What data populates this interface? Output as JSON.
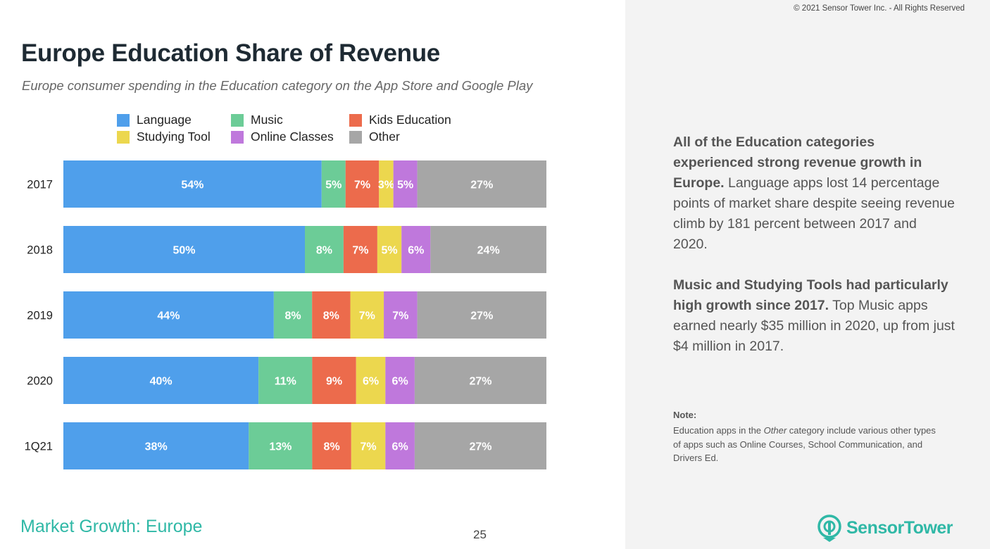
{
  "header": {
    "title": "Europe Education Share of Revenue",
    "subtitle": "Europe consumer spending in the Education category on the App Store and Google Play",
    "copyright": "© 2021 Sensor Tower Inc. - All Rights Reserved"
  },
  "legend": [
    {
      "label": "Language",
      "color": "#4f9feb"
    },
    {
      "label": "Music",
      "color": "#6ccc97"
    },
    {
      "label": "Kids Education",
      "color": "#ec6b4c"
    },
    {
      "label": "Studying Tool",
      "color": "#ecd74e"
    },
    {
      "label": "Online Classes",
      "color": "#bf78dc"
    },
    {
      "label": "Other",
      "color": "#a6a6a6"
    }
  ],
  "chart_data": {
    "type": "bar",
    "orientation": "horizontal",
    "stacked": true,
    "normalized_to_percent": true,
    "categories": [
      "2017",
      "2018",
      "2019",
      "2020",
      "1Q21"
    ],
    "series": [
      {
        "name": "Language",
        "color": "#4f9feb",
        "values": [
          54,
          50,
          44,
          40,
          38
        ],
        "labels": [
          "54%",
          "50%",
          "44%",
          "40%",
          "38%"
        ]
      },
      {
        "name": "Music",
        "color": "#6ccc97",
        "values": [
          5,
          8,
          8,
          11,
          13
        ],
        "labels": [
          "5%",
          "8%",
          "8%",
          "11%",
          "13%"
        ]
      },
      {
        "name": "Kids Education",
        "color": "#ec6b4c",
        "values": [
          7,
          7,
          8,
          9,
          8
        ],
        "labels": [
          "7%",
          "7%",
          "8%",
          "9%",
          "8%"
        ]
      },
      {
        "name": "Studying Tool",
        "color": "#ecd74e",
        "values": [
          3,
          5,
          7,
          6,
          7
        ],
        "labels": [
          "3%",
          "5%",
          "7%",
          "6%",
          "7%"
        ]
      },
      {
        "name": "Online Classes",
        "color": "#bf78dc",
        "values": [
          5,
          6,
          7,
          6,
          6
        ],
        "labels": [
          "5%",
          "6%",
          "7%",
          "6%",
          "6%"
        ]
      },
      {
        "name": "Other",
        "color": "#a6a6a6",
        "values": [
          27,
          24,
          27,
          27,
          27
        ],
        "labels": [
          "27%",
          "24%",
          "27%",
          "27%",
          "27%"
        ]
      }
    ],
    "legend_position": "top",
    "grid": false
  },
  "sidebar": {
    "insight1_bold": "All of the Education categories experienced strong revenue growth in Europe.",
    "insight1_text": " Language apps lost 14 percentage points of market share despite seeing revenue climb by 181 percent between 2017 and 2020.",
    "insight2_bold": "Music and Studying Tools had particularly high growth since 2017.",
    "insight2_text": " Top Music apps earned nearly $35 million in 2020, up from just $4 million in 2017.",
    "note_title": "Note:",
    "note_pre": "Education apps in the ",
    "note_italic": "Other",
    "note_post": " category include various other types of apps such as Online Courses, School Communication, and Drivers Ed."
  },
  "footer": {
    "section": "Market Growth: Europe",
    "page_number": "25",
    "brand_sensor": "Sensor",
    "brand_tower": "Tower",
    "logo_icon": "sensor-tower-logo-icon",
    "brand_color": "#2fb8a6"
  }
}
